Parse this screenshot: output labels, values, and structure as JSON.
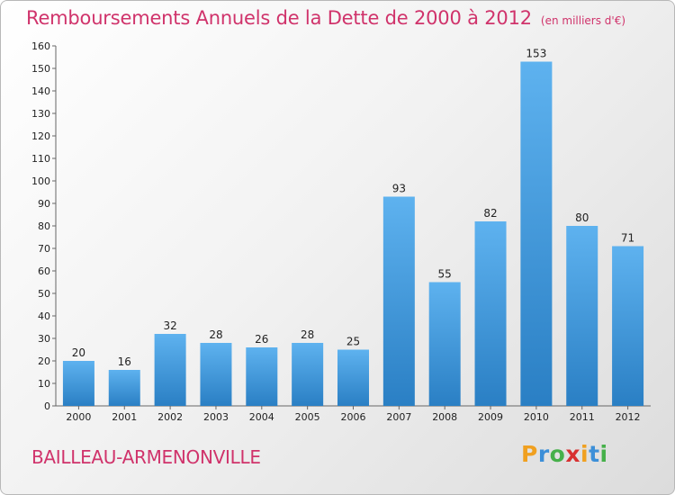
{
  "title": "Remboursements Annuels de la Dette de 2000 à 2012",
  "unit_note": "(en milliers d'€)",
  "place_name": "BAILLEAU-ARMENONVILLE",
  "logo": {
    "letters": [
      "P",
      "r",
      "o",
      "x",
      "i",
      "t",
      "i"
    ],
    "colors": [
      "#f0a020",
      "#3c8fd8",
      "#46b04a",
      "#d83030",
      "#f0a020",
      "#3c8fd8",
      "#46b04a"
    ]
  },
  "colors": {
    "accent": "#d0336b",
    "bar_top": "#5eb2ef",
    "bar_bottom": "#2a7fc4"
  },
  "chart_data": {
    "type": "bar",
    "categories": [
      "2000",
      "2001",
      "2002",
      "2003",
      "2004",
      "2005",
      "2006",
      "2007",
      "2008",
      "2009",
      "2010",
      "2011",
      "2012"
    ],
    "values": [
      20,
      16,
      32,
      28,
      26,
      28,
      25,
      93,
      55,
      82,
      153,
      80,
      71
    ],
    "title": "Remboursements Annuels de la Dette de 2000 à 2012",
    "ylim": [
      0,
      160
    ],
    "yticks": [
      0,
      10,
      20,
      30,
      40,
      50,
      60,
      70,
      80,
      90,
      100,
      110,
      120,
      130,
      140,
      150,
      160
    ],
    "grid": false,
    "data_labels": true
  }
}
